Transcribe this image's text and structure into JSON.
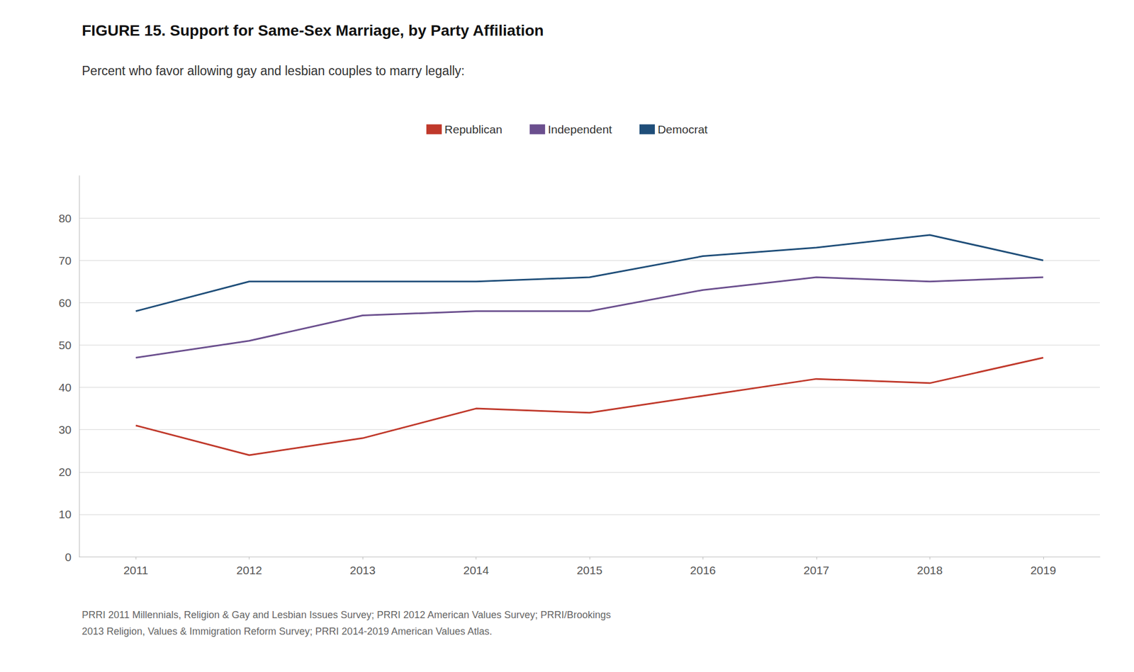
{
  "chart_data": {
    "type": "line",
    "title": "FIGURE 15. Support for Same-Sex Marriage, by Party Affiliation",
    "subtitle": "Percent who favor allowing gay and lesbian couples to marry legally:",
    "footnote": "PRRI 2011 Millennials, Religion & Gay and Lesbian Issues Survey; PRRI 2012 American Values Survey; PRRI/Brookings\n2013 Religion, Values & Immigration Reform Survey; PRRI 2014-2019 American Values Atlas.",
    "x": [
      2011,
      2012,
      2013,
      2014,
      2015,
      2016,
      2017,
      2018,
      2019
    ],
    "xlim": [
      2010.5,
      2019.5
    ],
    "xticks": [
      2011,
      2012,
      2013,
      2014,
      2015,
      2016,
      2017,
      2018,
      2019
    ],
    "ylim": [
      0,
      90
    ],
    "yticks": [
      0,
      10,
      20,
      30,
      40,
      50,
      60,
      70,
      80
    ],
    "grid": true,
    "legend": "top",
    "series": [
      {
        "name": "Republican",
        "color": "#c0392b",
        "values": [
          31,
          24,
          28,
          35,
          34,
          38,
          42,
          41,
          47
        ]
      },
      {
        "name": "Independent",
        "color": "#6b4f8e",
        "values": [
          47,
          51,
          57,
          58,
          58,
          63,
          66,
          65,
          66
        ]
      },
      {
        "name": "Democrat",
        "color": "#1f4e79",
        "values": [
          58,
          65,
          65,
          65,
          66,
          71,
          73,
          76,
          70
        ]
      }
    ]
  }
}
